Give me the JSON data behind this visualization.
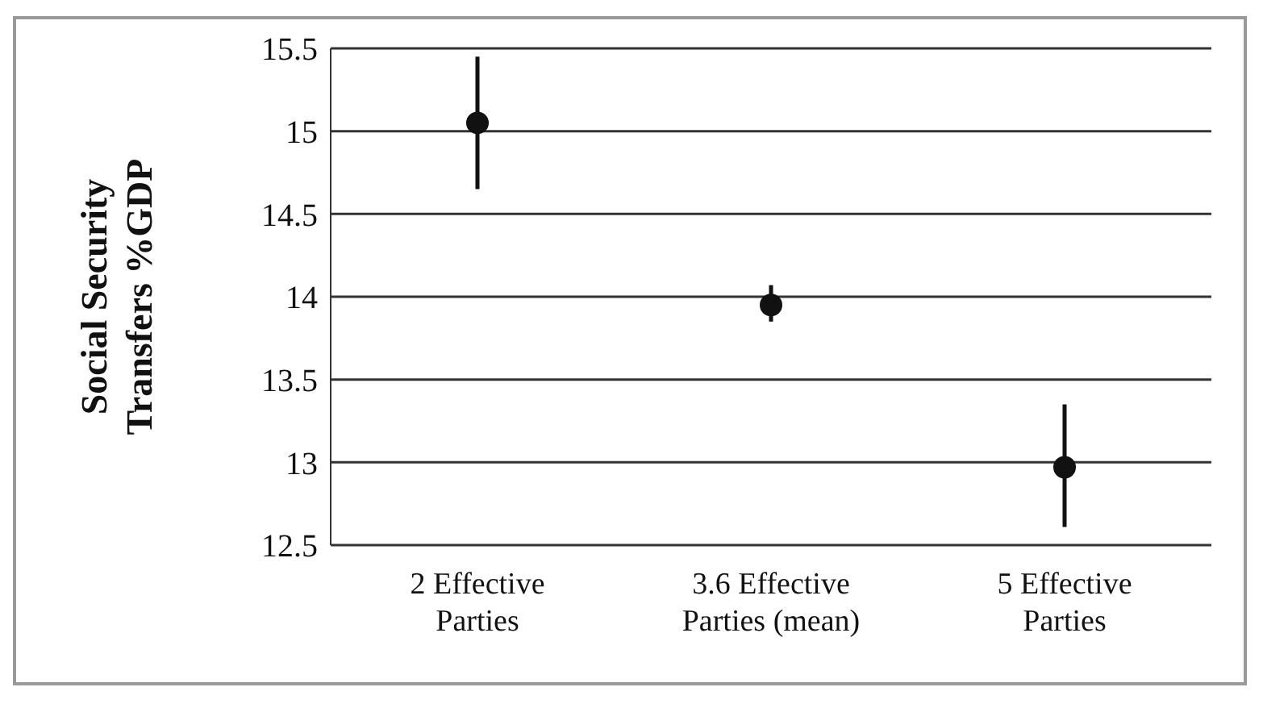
{
  "chart_data": {
    "type": "scatter",
    "ylabel": "Social Security Transfers %GDP",
    "categories": [
      "2 Effective Parties",
      "3.6 Effective Parties (mean)",
      "5 Effective Parties"
    ],
    "values": [
      15.05,
      13.95,
      12.97
    ],
    "errors": [
      [
        14.65,
        15.45
      ],
      [
        13.85,
        14.07
      ],
      [
        12.61,
        13.35
      ]
    ],
    "color": "#111111",
    "marker": "circle",
    "ylim": [
      12.5,
      15.5
    ],
    "yticks": [
      12.5,
      13,
      13.5,
      14,
      14.5,
      15,
      15.5
    ],
    "grid": "y"
  }
}
